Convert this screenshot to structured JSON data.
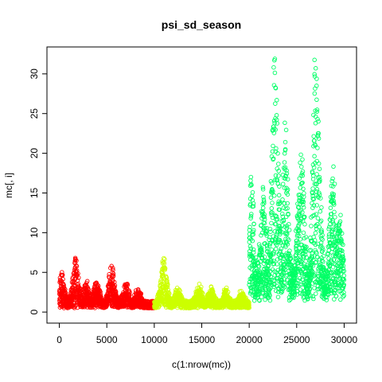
{
  "chart_data": {
    "type": "scatter",
    "title": "psi_sd_season",
    "xlabel": "c(1:nrow(mc))",
    "ylabel": "mc[, i]",
    "xlim": [
      0,
      30000
    ],
    "ylim": [
      0,
      32
    ],
    "x_ticks": [
      0,
      5000,
      10000,
      15000,
      20000,
      25000,
      30000
    ],
    "y_ticks": [
      0,
      5,
      10,
      15,
      20,
      25,
      30
    ],
    "grid": false,
    "legend": "none",
    "marker": "open-circle",
    "series": [
      {
        "color": "#ff0000",
        "x_range": [
          1,
          10000
        ],
        "baseline": 0.5,
        "peaks": [
          {
            "x": 200,
            "y": 4.7
          },
          {
            "x": 1700,
            "y": 6.6
          },
          {
            "x": 2800,
            "y": 3.4
          },
          {
            "x": 3900,
            "y": 3.7
          },
          {
            "x": 5500,
            "y": 5.8
          },
          {
            "x": 7000,
            "y": 3.3
          },
          {
            "x": 8300,
            "y": 2.4
          }
        ]
      },
      {
        "color": "#ccff00",
        "x_range": [
          10001,
          20000
        ],
        "baseline": 0.5,
        "peaks": [
          {
            "x": 11000,
            "y": 6.3
          },
          {
            "x": 12500,
            "y": 2.6
          },
          {
            "x": 14700,
            "y": 3.0
          },
          {
            "x": 16000,
            "y": 2.7
          },
          {
            "x": 17500,
            "y": 2.4
          },
          {
            "x": 19200,
            "y": 2.0
          }
        ]
      },
      {
        "color": "#00ff66",
        "x_range": [
          20001,
          30000
        ],
        "baseline": 1.4,
        "peaks": [
          {
            "x": 20200,
            "y": 16.1
          },
          {
            "x": 21500,
            "y": 14.5
          },
          {
            "x": 22700,
            "y": 31.9
          },
          {
            "x": 22800,
            "y": 28.2
          },
          {
            "x": 23800,
            "y": 21.4
          },
          {
            "x": 25300,
            "y": 14.4
          },
          {
            "x": 25500,
            "y": 18.3
          },
          {
            "x": 27000,
            "y": 30.7
          },
          {
            "x": 27100,
            "y": 28.5
          },
          {
            "x": 27200,
            "y": 24.3
          },
          {
            "x": 28800,
            "y": 16.8
          },
          {
            "x": 29500,
            "y": 11.2
          }
        ]
      }
    ]
  }
}
